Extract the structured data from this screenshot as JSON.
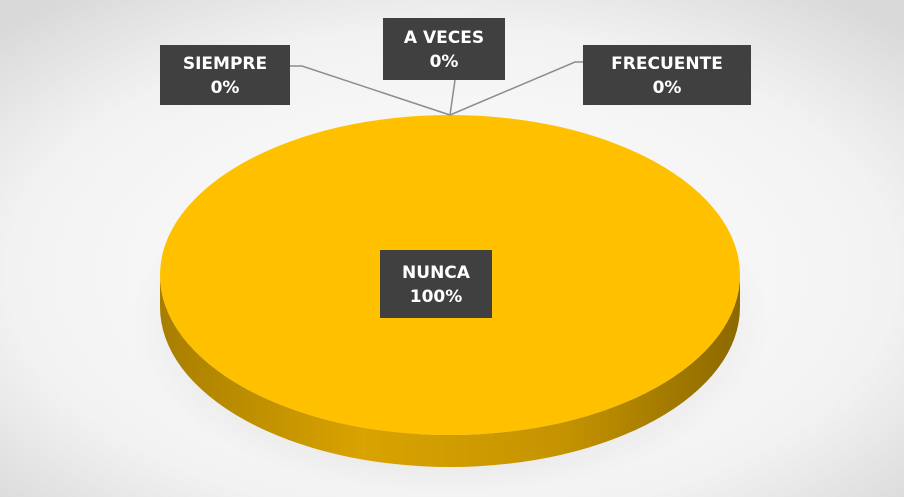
{
  "chart_data": {
    "type": "pie",
    "categories": [
      "SIEMPRE",
      "A VECES",
      "FRECUENTE",
      "NUNCA"
    ],
    "values": [
      0,
      0,
      0,
      100
    ],
    "value_labels": [
      "0%",
      "0%",
      "0%",
      "100%"
    ],
    "color": "#ffc000"
  }
}
